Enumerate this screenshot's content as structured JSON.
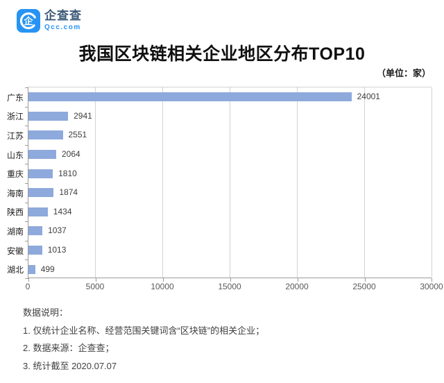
{
  "brand": {
    "name": "企查查",
    "subtext": "Qcc.com",
    "icon_glyph": "企",
    "icon_color": "#2794f3"
  },
  "header": {
    "title": "我国区块链相关企业地区分布TOP10",
    "unit_label": "（单位：家）"
  },
  "chart_data": {
    "type": "bar",
    "orientation": "horizontal",
    "title": "我国区块链相关企业地区分布TOP10",
    "unit": "家",
    "categories": [
      "广东",
      "浙江",
      "江苏",
      "山东",
      "重庆",
      "海南",
      "陕西",
      "湖南",
      "安徽",
      "湖北"
    ],
    "values": [
      24001,
      2941,
      2551,
      2064,
      1810,
      1874,
      1434,
      1037,
      1013,
      499
    ],
    "x_ticks": [
      0,
      5000,
      10000,
      15000,
      20000,
      25000,
      30000
    ],
    "xlim": [
      0,
      30000
    ],
    "grid": true,
    "value_labels": true,
    "bar_color": "#8EA9DB",
    "gridline_color": "#d2d2d2",
    "axis_color": "#9b9b9b"
  },
  "footer": {
    "heading": "数据说明：",
    "notes": [
      "1. 仅统计企业名称、经营范围关键词含“区块链”的相关企业；",
      "2. 数据来源：企查查；",
      "3. 统计截至 2020.07.07"
    ]
  }
}
